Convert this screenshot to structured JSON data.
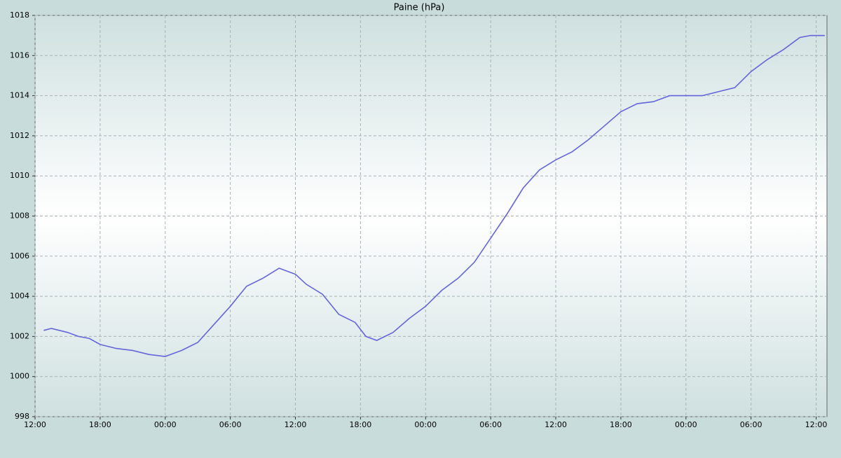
{
  "chart_data": {
    "type": "line",
    "title": "Paine (hPa)",
    "x": [
      0.8,
      1.5,
      3,
      4,
      5,
      6,
      7.5,
      9,
      10.5,
      12,
      13.5,
      15,
      16.5,
      18,
      19.5,
      21,
      22.5,
      23.5,
      24,
      25,
      26.5,
      28,
      29.5,
      30.5,
      31.5,
      33,
      34.5,
      36,
      37.5,
      39,
      40.5,
      42,
      43.5,
      45,
      46.5,
      48,
      49.5,
      51,
      52.5,
      54,
      55.5,
      57,
      58.5,
      60,
      61.5,
      63,
      64.5,
      66,
      67.5,
      69,
      70.5,
      71.5,
      72.8
    ],
    "series": [
      {
        "name": "Paine",
        "color": "#6464dc",
        "values": [
          1002.3,
          1002.4,
          1002.2,
          1002.0,
          1001.9,
          1001.6,
          1001.4,
          1001.3,
          1001.1,
          1001.0,
          1001.3,
          1001.7,
          1002.6,
          1003.5,
          1004.5,
          1004.9,
          1005.4,
          1005.2,
          1005.1,
          1004.6,
          1004.1,
          1003.1,
          1002.7,
          1002.0,
          1001.8,
          1002.2,
          1002.9,
          1003.5,
          1004.3,
          1004.9,
          1005.7,
          1006.9,
          1008.1,
          1009.4,
          1010.3,
          1010.8,
          1011.2,
          1011.8,
          1012.5,
          1013.2,
          1013.6,
          1013.7,
          1014.0,
          1014.0,
          1014.0,
          1014.2,
          1014.4,
          1015.2,
          1015.8,
          1016.3,
          1016.9,
          1017.0,
          1017.0
        ]
      }
    ],
    "xlim": [
      0,
      73
    ],
    "xticks": [
      {
        "value": 0,
        "label": "12:00"
      },
      {
        "value": 6,
        "label": "18:00"
      },
      {
        "value": 12,
        "label": "00:00"
      },
      {
        "value": 18,
        "label": "06:00"
      },
      {
        "value": 24,
        "label": "12:00"
      },
      {
        "value": 30,
        "label": "18:00"
      },
      {
        "value": 36,
        "label": "00:00"
      },
      {
        "value": 42,
        "label": "06:00"
      },
      {
        "value": 48,
        "label": "12:00"
      },
      {
        "value": 54,
        "label": "18:00"
      },
      {
        "value": 60,
        "label": "00:00"
      },
      {
        "value": 66,
        "label": "06:00"
      },
      {
        "value": 72,
        "label": "12:00"
      }
    ],
    "ylim": [
      998,
      1018
    ],
    "yticks": [
      998,
      1000,
      1002,
      1004,
      1006,
      1008,
      1010,
      1012,
      1014,
      1016,
      1018
    ],
    "grid": true
  }
}
